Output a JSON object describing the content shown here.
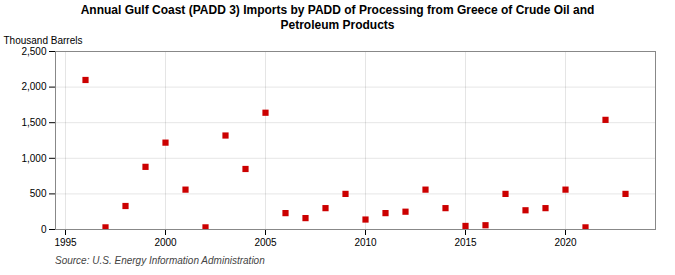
{
  "chart_data": {
    "type": "scatter",
    "title": "Annual Gulf Coast (PADD 3) Imports by PADD of Processing from Greece of Crude Oil and\nPetroleum Products",
    "ylabel": "Thousand Barrels",
    "source": "Source: U.S. Energy Information Administration",
    "x": [
      1996,
      1997,
      1998,
      1999,
      2000,
      2001,
      2002,
      2003,
      2004,
      2005,
      2006,
      2007,
      2008,
      2009,
      2010,
      2011,
      2012,
      2013,
      2014,
      2015,
      2016,
      2017,
      2018,
      2019,
      2020,
      2021,
      2022,
      2023
    ],
    "values": [
      2100,
      30,
      330,
      880,
      1220,
      560,
      30,
      1320,
      850,
      1640,
      230,
      160,
      300,
      500,
      140,
      230,
      250,
      560,
      300,
      50,
      60,
      500,
      270,
      300,
      560,
      30,
      1540,
      500
    ],
    "color": "#cc0000",
    "marker": "square",
    "xlim": [
      1994.5,
      2024.5
    ],
    "xticks": [
      1995,
      2000,
      2005,
      2010,
      2015,
      2020
    ],
    "ylim": [
      0,
      2500
    ],
    "yticks": [
      0,
      500,
      {
        "value": 1000,
        "label": "1,000"
      },
      {
        "value": 1500,
        "label": "1,500"
      },
      {
        "value": 2000,
        "label": "2,000"
      },
      {
        "value": 2500,
        "label": "2,500"
      }
    ],
    "grid": true
  }
}
